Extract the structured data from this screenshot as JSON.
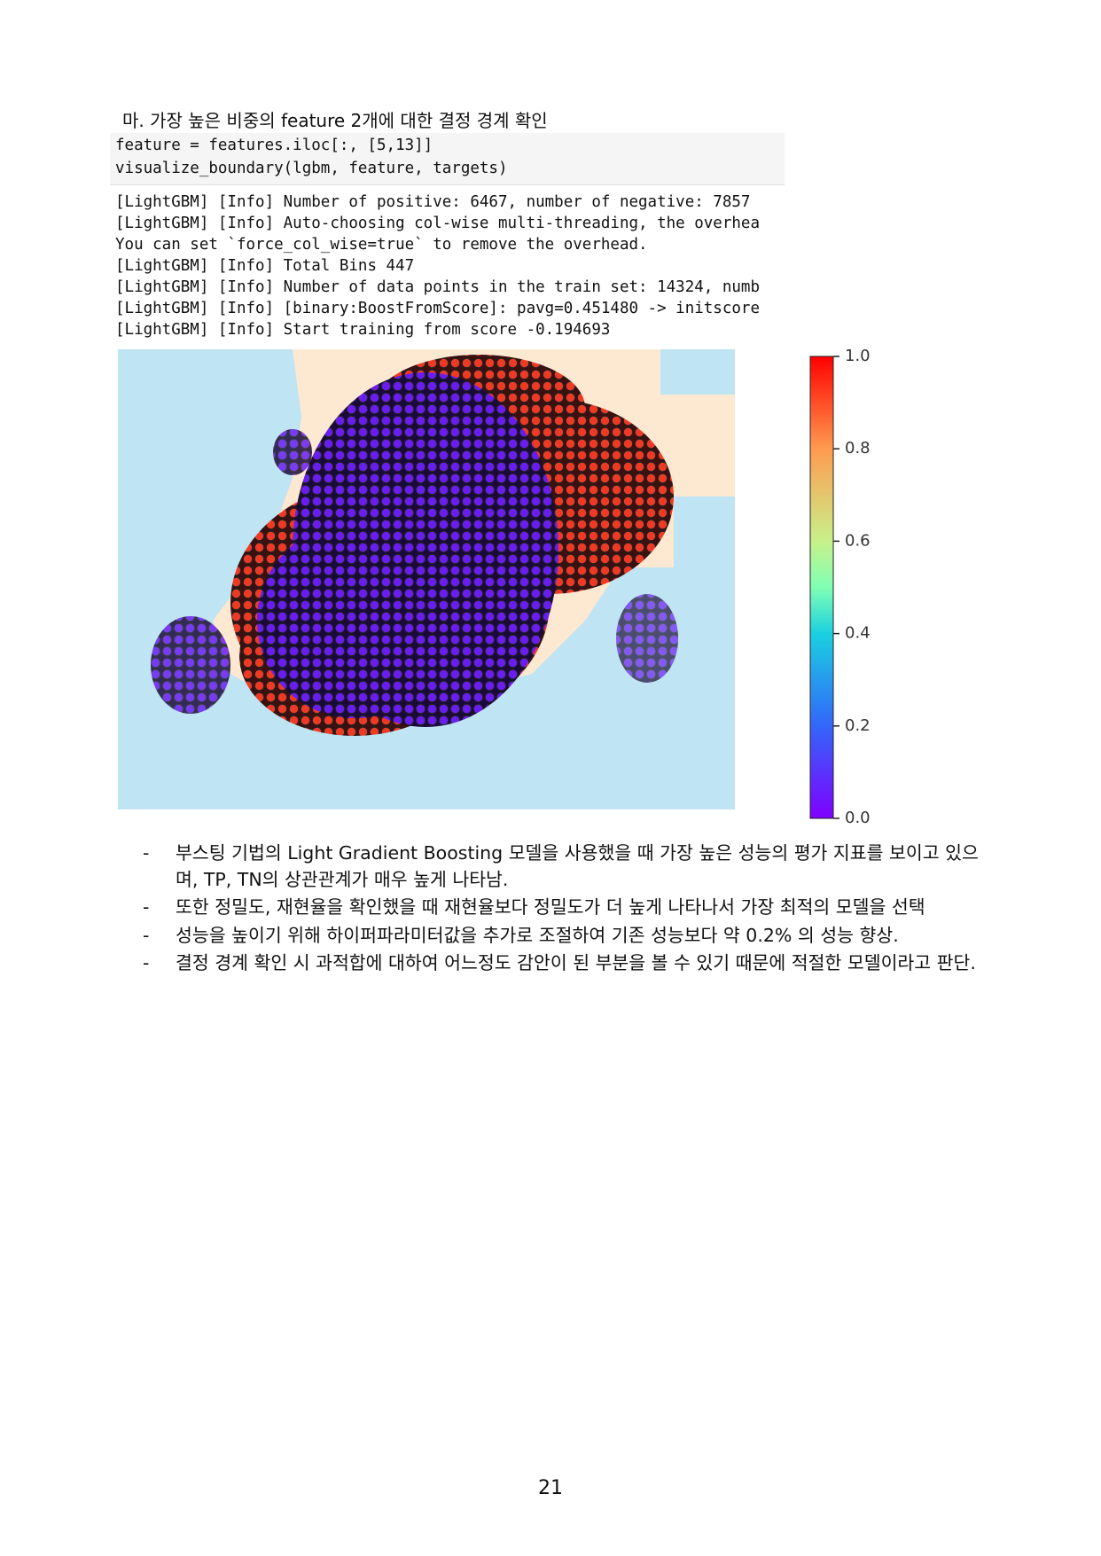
{
  "heading": "마. 가장 높은 비중의 feature 2개에 대한 결정 경계 확인",
  "code": {
    "lines": [
      "feature = features.iloc[:, [5,13]]",
      "visualize_boundary(lgbm, feature, targets)"
    ]
  },
  "output": {
    "lines": [
      "[LightGBM] [Info] Number of positive: 6467, number of negative: 7857",
      "[LightGBM] [Info] Auto-choosing col-wise multi-threading, the overhea",
      "You can set `force_col_wise=true` to remove the overhead.",
      "[LightGBM] [Info] Total Bins 447",
      "[LightGBM] [Info] Number of data points in the train set: 14324, numb",
      "[LightGBM] [Info] [binary:BoostFromScore]: pavg=0.451480 -> initscore",
      "[LightGBM] [Info] Start training from score -0.194693"
    ]
  },
  "colorbar": {
    "ylim": [
      0,
      1
    ],
    "yticks": [
      {
        "value": 0,
        "label": "0.0"
      },
      {
        "value": 0.2,
        "label": "0.2"
      },
      {
        "value": 0.4,
        "label": "0.4"
      },
      {
        "value": 0.6,
        "label": "0.6"
      },
      {
        "value": 0.8,
        "label": "0.8"
      },
      {
        "value": 1,
        "label": "1.0"
      }
    ]
  },
  "bullets": [
    {
      "marker": "-",
      "text": "부스팅 기법의 Light Gradient Boosting 모델을 사용했을 때 가장 높은 성능의 평가 지표를 보이고 있으며, TP, TN의 상관관계가 매우 높게 나타남."
    },
    {
      "marker": "-",
      "text": "또한 정밀도, 재현율을 확인했을 때 재현율보다 정밀도가 더 높게 나타나서 가장 최적의 모델을 선택"
    },
    {
      "marker": "-",
      "text": "성능을 높이기 위해 하이퍼파라미터값을 추가로 조절하여 기존 성능보다 약 0.2% 의 성능 향상."
    },
    {
      "marker": "-",
      "text": "결정 경계 확인 시 과적합에 대하여 어느정도 감안이 된 부분을 볼 수 있기 때문에 적절한 모델이라고 판단."
    }
  ],
  "page_number": "21"
}
